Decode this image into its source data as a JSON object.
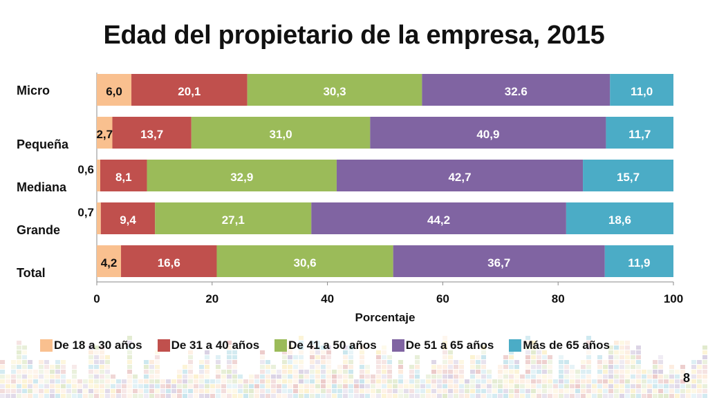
{
  "page": {
    "number": "8"
  },
  "chart_data": {
    "type": "bar",
    "orientation": "horizontal",
    "stacked": true,
    "title": "Edad del propietario de la empresa, 2015",
    "xlabel": "Porcentaje",
    "ylabel": "",
    "xlim": [
      0,
      100
    ],
    "x_ticks": [
      "0",
      "20",
      "40",
      "60",
      "80",
      "100"
    ],
    "categories": [
      "Micro",
      "Pequeña",
      "Mediana",
      "Grande",
      "Total"
    ],
    "series": [
      {
        "name": "De 18 a 30 años",
        "color": "#F9C08F",
        "values": [
          6.0,
          2.7,
          0.6,
          0.7,
          4.2
        ],
        "labels": [
          "6,0",
          "2,7",
          "0,6",
          "0,7",
          "4,2"
        ]
      },
      {
        "name": "De 31 a 40 años",
        "color": "#C0504D",
        "values": [
          20.1,
          13.7,
          8.1,
          9.4,
          16.6
        ],
        "labels": [
          "20,1",
          "13,7",
          "8,1",
          "9,4",
          "16,6"
        ]
      },
      {
        "name": "De 41 a 50 años",
        "color": "#9BBB59",
        "values": [
          30.3,
          31.0,
          32.9,
          27.1,
          30.6
        ],
        "labels": [
          "30,3",
          "31,0",
          "32,9",
          "27,1",
          "30,6"
        ]
      },
      {
        "name": "De 51 a 65 años",
        "color": "#8064A2",
        "values": [
          32.6,
          40.9,
          42.7,
          44.2,
          36.7
        ],
        "labels": [
          "32.6",
          "40,9",
          "42,7",
          "44,2",
          "36,7"
        ]
      },
      {
        "name": "Más de 65 años",
        "color": "#4BACC6",
        "values": [
          11.0,
          11.7,
          15.7,
          18.6,
          11.9
        ],
        "labels": [
          "11,0",
          "11,7",
          "15,7",
          "18,6",
          "11,9"
        ]
      }
    ],
    "grid": false,
    "legend_position": "bottom"
  }
}
